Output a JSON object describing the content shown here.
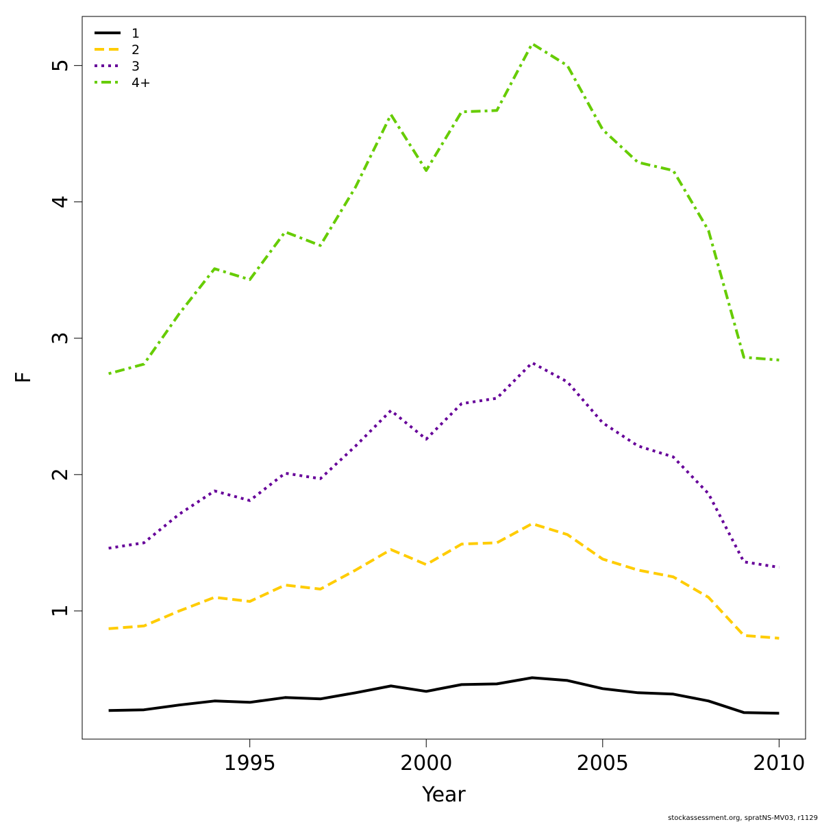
{
  "chart_data": {
    "type": "line",
    "title": "",
    "xlabel": "Year",
    "ylabel": "F",
    "xlim": [
      1990.25,
      2010.75
    ],
    "ylim": [
      0.06,
      5.36
    ],
    "x_ticks": [
      1995,
      2000,
      2005,
      2010
    ],
    "y_ticks": [
      1,
      2,
      3,
      4,
      5
    ],
    "grid": false,
    "legend_position": "top-left",
    "x": [
      1991,
      1992,
      1993,
      1994,
      1995,
      1996,
      1997,
      1998,
      1999,
      2000,
      2001,
      2002,
      2003,
      2004,
      2005,
      2006,
      2007,
      2008,
      2009,
      2010
    ],
    "series": [
      {
        "name": "1",
        "color": "#000000",
        "dash": "solid",
        "values": [
          0.27,
          0.275,
          0.31,
          0.34,
          0.33,
          0.365,
          0.355,
          0.4,
          0.45,
          0.41,
          0.46,
          0.465,
          0.51,
          0.49,
          0.43,
          0.4,
          0.39,
          0.34,
          0.255,
          0.25
        ]
      },
      {
        "name": "2",
        "color": "#FFCC00",
        "dash": "dashed",
        "values": [
          0.87,
          0.89,
          1.0,
          1.1,
          1.07,
          1.19,
          1.16,
          1.3,
          1.45,
          1.34,
          1.49,
          1.5,
          1.64,
          1.56,
          1.38,
          1.3,
          1.25,
          1.1,
          0.82,
          0.8
        ]
      },
      {
        "name": "3",
        "color": "#660099",
        "dash": "dotted",
        "values": [
          1.46,
          1.5,
          1.71,
          1.88,
          1.81,
          2.01,
          1.97,
          2.21,
          2.47,
          2.26,
          2.52,
          2.56,
          2.82,
          2.68,
          2.38,
          2.21,
          2.13,
          1.86,
          1.36,
          1.32
        ]
      },
      {
        "name": "4+",
        "color": "#66CC00",
        "dash": "dashdot",
        "values": [
          2.74,
          2.81,
          3.18,
          3.51,
          3.43,
          3.78,
          3.68,
          4.11,
          4.64,
          4.23,
          4.66,
          4.67,
          5.16,
          5.0,
          4.53,
          4.29,
          4.23,
          3.79,
          2.86,
          2.84
        ]
      }
    ]
  },
  "footer": {
    "credit": "stockassessment.org, spratNS-MV03, r1129"
  }
}
